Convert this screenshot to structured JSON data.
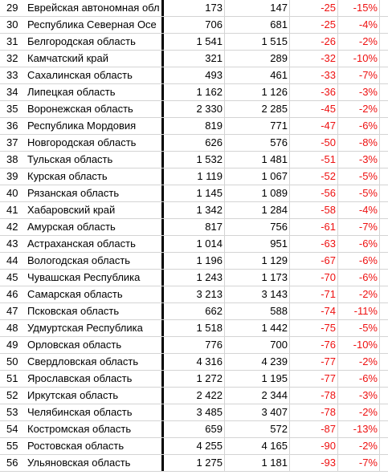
{
  "colors": {
    "negative": "#ee1111",
    "gridline": "#d4d4d4",
    "separator": "#000000"
  },
  "rows": [
    {
      "num": "29",
      "name": "Еврейская автономная обл",
      "a": "173",
      "b": "147",
      "diff": "-25",
      "pct": "-15%"
    },
    {
      "num": "30",
      "name": "Республика Северная Осе",
      "a": "706",
      "b": "681",
      "diff": "-25",
      "pct": "-4%"
    },
    {
      "num": "31",
      "name": "Белгородская область",
      "a": "1 541",
      "b": "1 515",
      "diff": "-26",
      "pct": "-2%"
    },
    {
      "num": "32",
      "name": "Камчатский край",
      "a": "321",
      "b": "289",
      "diff": "-32",
      "pct": "-10%"
    },
    {
      "num": "33",
      "name": "Сахалинская область",
      "a": "493",
      "b": "461",
      "diff": "-33",
      "pct": "-7%"
    },
    {
      "num": "34",
      "name": "Липецкая область",
      "a": "1 162",
      "b": "1 126",
      "diff": "-36",
      "pct": "-3%"
    },
    {
      "num": "35",
      "name": "Воронежская область",
      "a": "2 330",
      "b": "2 285",
      "diff": "-45",
      "pct": "-2%"
    },
    {
      "num": "36",
      "name": "Республика Мордовия",
      "a": "819",
      "b": "771",
      "diff": "-47",
      "pct": "-6%"
    },
    {
      "num": "37",
      "name": "Новгородская область",
      "a": "626",
      "b": "576",
      "diff": "-50",
      "pct": "-8%"
    },
    {
      "num": "38",
      "name": "Тульская область",
      "a": "1 532",
      "b": "1 481",
      "diff": "-51",
      "pct": "-3%"
    },
    {
      "num": "39",
      "name": "Курская область",
      "a": "1 119",
      "b": "1 067",
      "diff": "-52",
      "pct": "-5%"
    },
    {
      "num": "40",
      "name": "Рязанская область",
      "a": "1 145",
      "b": "1 089",
      "diff": "-56",
      "pct": "-5%"
    },
    {
      "num": "41",
      "name": "Хабаровский край",
      "a": "1 342",
      "b": "1 284",
      "diff": "-58",
      "pct": "-4%"
    },
    {
      "num": "42",
      "name": "Амурская область",
      "a": "817",
      "b": "756",
      "diff": "-61",
      "pct": "-7%"
    },
    {
      "num": "43",
      "name": "Астраханская область",
      "a": "1 014",
      "b": "951",
      "diff": "-63",
      "pct": "-6%"
    },
    {
      "num": "44",
      "name": "Вологодская область",
      "a": "1 196",
      "b": "1 129",
      "diff": "-67",
      "pct": "-6%"
    },
    {
      "num": "45",
      "name": "Чувашская Республика",
      "a": "1 243",
      "b": "1 173",
      "diff": "-70",
      "pct": "-6%"
    },
    {
      "num": "46",
      "name": "Самарская область",
      "a": "3 213",
      "b": "3 143",
      "diff": "-71",
      "pct": "-2%"
    },
    {
      "num": "47",
      "name": "Псковская область",
      "a": "662",
      "b": "588",
      "diff": "-74",
      "pct": "-11%"
    },
    {
      "num": "48",
      "name": "Удмуртская Республика",
      "a": "1 518",
      "b": "1 442",
      "diff": "-75",
      "pct": "-5%"
    },
    {
      "num": "49",
      "name": "Орловская область",
      "a": "776",
      "b": "700",
      "diff": "-76",
      "pct": "-10%"
    },
    {
      "num": "50",
      "name": "Свердловская область",
      "a": "4 316",
      "b": "4 239",
      "diff": "-77",
      "pct": "-2%"
    },
    {
      "num": "51",
      "name": "Ярославская область",
      "a": "1 272",
      "b": "1 195",
      "diff": "-77",
      "pct": "-6%"
    },
    {
      "num": "52",
      "name": "Иркутская область",
      "a": "2 422",
      "b": "2 344",
      "diff": "-78",
      "pct": "-3%"
    },
    {
      "num": "53",
      "name": "Челябинская область",
      "a": "3 485",
      "b": "3 407",
      "diff": "-78",
      "pct": "-2%"
    },
    {
      "num": "54",
      "name": "Костромская область",
      "a": "659",
      "b": "572",
      "diff": "-87",
      "pct": "-13%"
    },
    {
      "num": "55",
      "name": "Ростовская область",
      "a": "4 255",
      "b": "4 165",
      "diff": "-90",
      "pct": "-2%"
    },
    {
      "num": "56",
      "name": "Ульяновская область",
      "a": "1 275",
      "b": "1 181",
      "diff": "-93",
      "pct": "-7%"
    }
  ]
}
